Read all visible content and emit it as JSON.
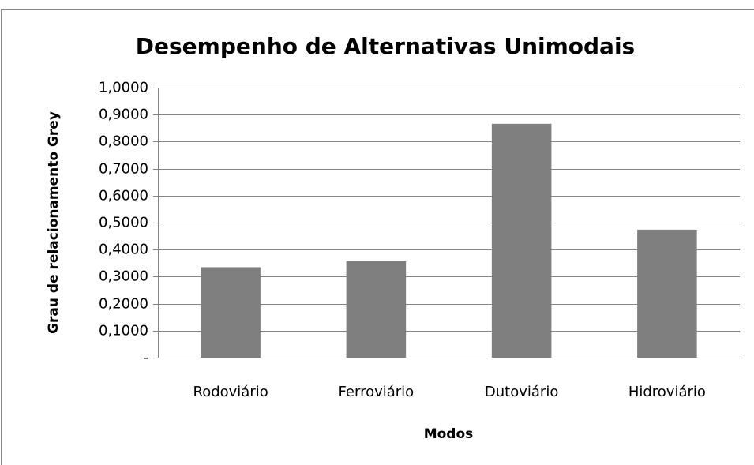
{
  "chart_data": {
    "type": "bar",
    "title": "Desempenho de Alternativas Unimodais",
    "x_label": "Modos",
    "y_label": "Grau de relacionamento Grey",
    "categories": [
      "Rodoviário",
      "Ferroviário",
      "Dutoviário",
      "Hidroviário"
    ],
    "values": [
      0.335,
      0.357,
      0.866,
      0.474
    ],
    "color": "#7f7f7f",
    "ylim": [
      0,
      1
    ],
    "yticks": [
      {
        "value": 0,
        "label": "-"
      },
      {
        "value": 0.1,
        "label": "0,1000"
      },
      {
        "value": 0.2,
        "label": "0,2000"
      },
      {
        "value": 0.3,
        "label": "0,3000"
      },
      {
        "value": 0.4,
        "label": "0,4000"
      },
      {
        "value": 0.5,
        "label": "0,5000"
      },
      {
        "value": 0.6,
        "label": "0,6000"
      },
      {
        "value": 0.7,
        "label": "0,7000"
      },
      {
        "value": 0.8,
        "label": "0,8000"
      },
      {
        "value": 0.9,
        "label": "0,9000"
      },
      {
        "value": 1,
        "label": "1,0000"
      }
    ],
    "grid": true
  }
}
